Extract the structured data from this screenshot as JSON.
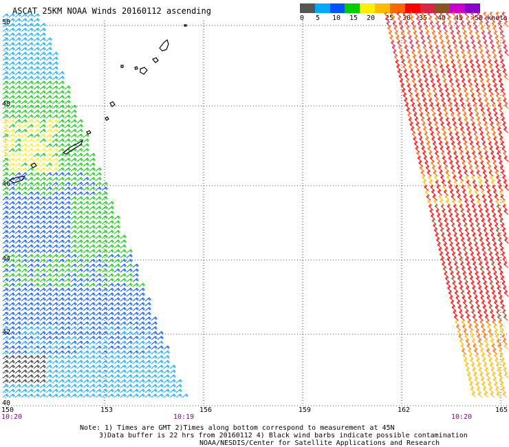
{
  "title": "ASCAT 25KM NOAA Winds 20160112 ascending",
  "legend": {
    "colors": [
      "#555555",
      "#00aaff",
      "#0055ff",
      "#00cc00",
      "#ffee00",
      "#ffbb00",
      "#ff6600",
      "#ff0000",
      "#dd2244",
      "#885522",
      "#cc00cc",
      "#8800cc"
    ],
    "labels": [
      "0",
      "5",
      "10",
      "15",
      "20",
      "25",
      "30",
      "35",
      "40",
      "45",
      ">50 knots"
    ]
  },
  "map": {
    "lat_labels": [
      "50",
      "48",
      "46",
      "44",
      "42",
      "40"
    ],
    "lon_labels": [
      "150",
      "153",
      "156",
      "159",
      "162",
      "165"
    ],
    "swath_times": [
      "10:20",
      "10:19",
      "10:20"
    ]
  },
  "notes": {
    "line1": "Note: 1) Times are GMT 2)Times along bottom correspond to measurement at 45N",
    "line2": "3)Data buffer is 22 hrs from 20160112 4) Black wind barbs indicate possible contamination",
    "line3": "NOAA/NESDIS/Center for Satellite Applications and Research"
  }
}
